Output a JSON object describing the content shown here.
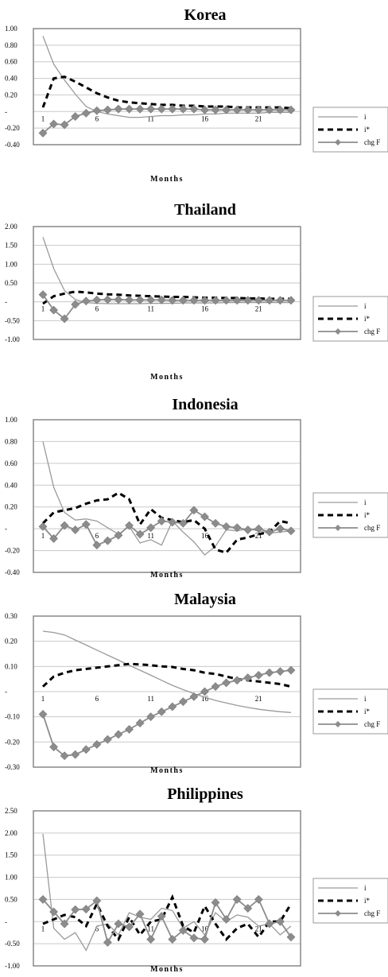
{
  "colors": {
    "i": "#9a9a9a",
    "istar": "#000000",
    "chgF": "#8c8c8c",
    "grid": "#c9c9c9",
    "frame": "#888888"
  },
  "chart_data": [
    {
      "type": "line",
      "title": "Korea",
      "xlabel": "Months",
      "ylim": [
        -0.4,
        1.0
      ],
      "yticks": [
        "1.00",
        "0.80",
        "0.60",
        "0.40",
        "0.20",
        "-",
        "-0.20",
        "-0.40"
      ],
      "ytick_values": [
        1.0,
        0.8,
        0.6,
        0.4,
        0.2,
        0,
        -0.2,
        -0.4
      ],
      "xticks": [
        "1",
        "6",
        "11",
        "16",
        "21"
      ],
      "legend": [
        "i",
        "i*",
        "chg F"
      ],
      "series": [
        {
          "name": "i",
          "values": [
            0.91,
            0.57,
            0.38,
            0.21,
            0.06,
            0.0,
            -0.03,
            -0.05,
            -0.07,
            -0.07,
            -0.06,
            -0.05,
            -0.05,
            -0.04,
            -0.04,
            -0.03,
            -0.03,
            -0.02,
            -0.02,
            -0.02,
            -0.02,
            -0.01,
            -0.01,
            -0.01
          ]
        },
        {
          "name": "i*",
          "values": [
            0.05,
            0.4,
            0.42,
            0.36,
            0.29,
            0.22,
            0.17,
            0.13,
            0.11,
            0.1,
            0.09,
            0.08,
            0.08,
            0.07,
            0.07,
            0.06,
            0.06,
            0.06,
            0.05,
            0.05,
            0.05,
            0.05,
            0.05,
            0.04
          ]
        },
        {
          "name": "chg F",
          "values": [
            -0.26,
            -0.15,
            -0.16,
            -0.06,
            -0.02,
            0.01,
            0.02,
            0.03,
            0.03,
            0.03,
            0.03,
            0.03,
            0.03,
            0.03,
            0.03,
            0.02,
            0.02,
            0.02,
            0.02,
            0.02,
            0.02,
            0.02,
            0.02,
            0.02
          ]
        }
      ]
    },
    {
      "type": "line",
      "title": "Thailand",
      "xlabel": "Months",
      "ylim": [
        -1.0,
        2.0
      ],
      "yticks": [
        "2.00",
        "1.50",
        "1.00",
        "0.50",
        "-",
        "-0.50",
        "-1.00"
      ],
      "ytick_values": [
        2.0,
        1.5,
        1.0,
        0.5,
        0,
        -0.5,
        -1.0
      ],
      "xticks": [
        "1",
        "6",
        "11",
        "16",
        "21"
      ],
      "legend": [
        "i",
        "i*",
        "chg F"
      ],
      "series": [
        {
          "name": "i",
          "values": [
            1.72,
            0.88,
            0.3,
            0.06,
            -0.02,
            -0.04,
            -0.05,
            -0.05,
            -0.05,
            -0.05,
            -0.04,
            -0.04,
            -0.04,
            -0.03,
            -0.03,
            -0.03,
            -0.03,
            -0.02,
            -0.02,
            -0.02,
            -0.02,
            -0.02,
            -0.02,
            -0.02
          ]
        },
        {
          "name": "i*",
          "values": [
            -0.05,
            0.15,
            0.22,
            0.27,
            0.25,
            0.22,
            0.2,
            0.19,
            0.17,
            0.16,
            0.15,
            0.14,
            0.13,
            0.13,
            0.12,
            0.11,
            0.11,
            0.1,
            0.1,
            0.09,
            0.09,
            0.08,
            0.08,
            0.08
          ]
        },
        {
          "name": "chg F",
          "values": [
            0.19,
            -0.22,
            -0.45,
            -0.07,
            0.02,
            0.05,
            0.06,
            0.06,
            0.05,
            0.05,
            0.05,
            0.05,
            0.04,
            0.04,
            0.04,
            0.04,
            0.04,
            0.04,
            0.04,
            0.04,
            0.04,
            0.04,
            0.04,
            0.04
          ]
        }
      ]
    },
    {
      "type": "line",
      "title": "Indonesia",
      "xlabel": "Months",
      "ylim": [
        -0.4,
        1.0
      ],
      "yticks": [
        "1.00",
        "0.80",
        "0.60",
        "0.40",
        "0.20",
        "-",
        "-0.20",
        "-0.40"
      ],
      "ytick_values": [
        1.0,
        0.8,
        0.6,
        0.4,
        0.2,
        0,
        -0.2,
        -0.4
      ],
      "xticks": [
        "1",
        "6",
        "11",
        "16",
        "21"
      ],
      "legend": [
        "i",
        "i*",
        "chg F"
      ],
      "series": [
        {
          "name": "i",
          "values": [
            0.8,
            0.38,
            0.15,
            0.08,
            0.09,
            0.07,
            0.01,
            -0.05,
            0.02,
            -0.13,
            -0.1,
            -0.15,
            0.07,
            -0.03,
            -0.12,
            -0.24,
            -0.16,
            -0.01,
            -0.02,
            0.0,
            -0.02,
            -0.04,
            -0.03,
            -0.02
          ]
        },
        {
          "name": "i*",
          "values": [
            0.05,
            0.15,
            0.17,
            0.19,
            0.23,
            0.26,
            0.27,
            0.33,
            0.27,
            0.04,
            0.18,
            0.1,
            0.08,
            0.06,
            0.08,
            0.0,
            -0.19,
            -0.22,
            -0.1,
            -0.08,
            -0.05,
            -0.03,
            0.07,
            0.05
          ]
        },
        {
          "name": "chg F",
          "values": [
            0.02,
            -0.09,
            0.03,
            -0.01,
            0.04,
            -0.15,
            -0.11,
            -0.06,
            0.03,
            -0.05,
            0.01,
            0.07,
            0.06,
            0.05,
            0.17,
            0.11,
            0.05,
            0.02,
            0.01,
            -0.01,
            0.0,
            -0.03,
            0.0,
            -0.02
          ]
        }
      ]
    },
    {
      "type": "line",
      "title": "Malaysia",
      "xlabel": "Months",
      "ylim": [
        -0.3,
        0.3
      ],
      "yticks": [
        "0.30",
        "0.20",
        "0.10",
        "-",
        "-0.10",
        "-0.20",
        "-0.30"
      ],
      "ytick_values": [
        0.3,
        0.2,
        0.1,
        0,
        -0.1,
        -0.2,
        -0.3
      ],
      "xticks": [
        "1",
        "6",
        "11",
        "16",
        "21"
      ],
      "legend": [
        "i",
        "i*",
        "chg F"
      ],
      "series": [
        {
          "name": "i",
          "values": [
            0.24,
            0.235,
            0.225,
            0.205,
            0.185,
            0.165,
            0.145,
            0.125,
            0.105,
            0.085,
            0.065,
            0.045,
            0.025,
            0.008,
            -0.008,
            -0.022,
            -0.035,
            -0.045,
            -0.055,
            -0.063,
            -0.07,
            -0.075,
            -0.08,
            -0.083
          ]
        },
        {
          "name": "i*",
          "values": [
            0.02,
            0.06,
            0.075,
            0.085,
            0.09,
            0.095,
            0.1,
            0.105,
            0.11,
            0.108,
            0.105,
            0.1,
            0.098,
            0.09,
            0.085,
            0.075,
            0.07,
            0.06,
            0.05,
            0.045,
            0.04,
            0.035,
            0.03,
            0.02
          ]
        },
        {
          "name": "chg F",
          "values": [
            -0.09,
            -0.22,
            -0.255,
            -0.25,
            -0.23,
            -0.21,
            -0.19,
            -0.17,
            -0.15,
            -0.125,
            -0.1,
            -0.08,
            -0.06,
            -0.04,
            -0.02,
            0.0,
            0.02,
            0.035,
            0.045,
            0.055,
            0.065,
            0.075,
            0.08,
            0.085
          ]
        }
      ]
    },
    {
      "type": "line",
      "title": "Philippines",
      "xlabel": "Months",
      "ylim": [
        -1.0,
        2.5
      ],
      "yticks": [
        "2.50",
        "2.00",
        "1.50",
        "1.00",
        "0.50",
        "-",
        "-0.50",
        "-1.00"
      ],
      "ytick_values": [
        2.5,
        2.0,
        1.5,
        1.0,
        0.5,
        0,
        -0.5,
        -1.0
      ],
      "xticks": [
        "1",
        "6",
        "11",
        "16",
        "21"
      ],
      "legend": [
        "i",
        "i*",
        "chg F"
      ],
      "series": [
        {
          "name": "i",
          "values": [
            1.98,
            -0.15,
            -0.4,
            -0.25,
            -0.65,
            -0.1,
            -0.05,
            -0.3,
            0.2,
            0.1,
            0.05,
            0.3,
            0.25,
            -0.15,
            0.0,
            -0.3,
            0.2,
            0.0,
            0.15,
            0.1,
            -0.1,
            -0.05,
            -0.3,
            -0.1
          ]
        },
        {
          "name": "i*",
          "values": [
            -0.05,
            0.05,
            0.15,
            0.1,
            -0.1,
            0.4,
            -0.1,
            -0.4,
            0.1,
            -0.3,
            0.0,
            0.05,
            0.55,
            -0.1,
            -0.25,
            0.35,
            -0.05,
            -0.4,
            -0.15,
            -0.05,
            -0.35,
            0.0,
            0.0,
            0.4
          ]
        },
        {
          "name": "chg F",
          "values": [
            0.5,
            0.22,
            -0.05,
            0.27,
            0.28,
            0.47,
            -0.47,
            -0.05,
            -0.12,
            0.17,
            -0.4,
            0.12,
            -0.4,
            -0.2,
            -0.37,
            -0.4,
            0.43,
            0.05,
            0.5,
            0.3,
            0.5,
            -0.05,
            0.0,
            -0.35
          ]
        }
      ]
    }
  ]
}
